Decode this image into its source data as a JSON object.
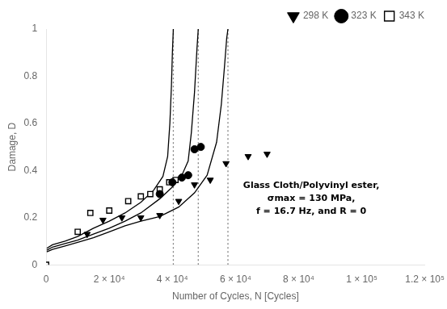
{
  "chart_data": {
    "type": "scatter",
    "x_label": "Number of Cycles, N [Cycles]",
    "y_label": "Damage, D",
    "annotations": [
      {
        "text": [
          "Glass Cloth/Polyvinyl ester,",
          "σmax = 130 MPa,",
          "f = 16.7 Hz, and R = 0"
        ]
      }
    ],
    "xlim": [
      0,
      120000
    ],
    "ylim": [
      0,
      1.0
    ],
    "xticks": [
      0,
      {
        "value": 20000,
        "label": "2 × 10⁴"
      },
      {
        "value": 40000,
        "label": "4 × 10⁴"
      },
      {
        "value": 60000,
        "label": "6 × 10⁴"
      },
      {
        "value": 80000,
        "label": "8 × 10⁴"
      },
      {
        "value": 100000,
        "label": "1 × 10⁵"
      },
      {
        "value": 120000,
        "label": "1.2 × 10⁵"
      }
    ],
    "yticks": [
      0,
      0.2,
      0.4,
      0.6,
      0.8,
      1
    ],
    "grid": false,
    "legend": "upper right",
    "series": [
      {
        "type": "line",
        "line_style": "solid",
        "color": "black",
        "x": [
          200,
          2000,
          6000,
          10000,
          15000,
          20000,
          25000,
          30000,
          36000,
          42000,
          47000,
          51000,
          54000,
          55500,
          56500,
          57200,
          57600
        ],
        "values": [
          0.055,
          0.065,
          0.08,
          0.095,
          0.115,
          0.14,
          0.165,
          0.185,
          0.205,
          0.245,
          0.305,
          0.38,
          0.52,
          0.68,
          0.84,
          0.96,
          1.0
        ]
      },
      {
        "type": "line",
        "line_style": "solid",
        "color": "black",
        "x": [
          200,
          2000,
          6000,
          10000,
          15000,
          20000,
          25000,
          30000,
          36000,
          40000,
          43000,
          45000,
          46000,
          47000,
          47800,
          48200
        ],
        "values": [
          0.062,
          0.075,
          0.09,
          0.105,
          0.13,
          0.155,
          0.185,
          0.22,
          0.28,
          0.33,
          0.38,
          0.44,
          0.56,
          0.73,
          0.92,
          1.0
        ]
      },
      {
        "type": "line",
        "line_style": "solid",
        "color": "black",
        "x": [
          200,
          2000,
          6000,
          10000,
          15000,
          20000,
          25000,
          30000,
          34000,
          37000,
          38500,
          39200,
          39700,
          40000,
          40300
        ],
        "values": [
          0.07,
          0.085,
          0.1,
          0.12,
          0.155,
          0.185,
          0.22,
          0.265,
          0.315,
          0.375,
          0.46,
          0.6,
          0.76,
          0.9,
          1.0
        ]
      },
      {
        "type": "line",
        "line_style": "dotted",
        "color": "gray",
        "x": [
          40300,
          40300
        ],
        "values": [
          0.0,
          1.0
        ]
      },
      {
        "type": "line",
        "line_style": "dotted",
        "color": "gray",
        "x": [
          48200,
          48200
        ],
        "values": [
          0.0,
          1.0
        ]
      },
      {
        "type": "line",
        "line_style": "dotted",
        "color": "gray",
        "x": [
          57600,
          57600
        ],
        "values": [
          0.0,
          1.0
        ]
      },
      {
        "name": "298 K",
        "type": "scatter",
        "marker": "triangle-down",
        "color": "black",
        "x": [
          13000,
          18000,
          24000,
          30000,
          36000,
          42000,
          47000,
          52000,
          57000,
          64000,
          70000
        ],
        "values": [
          0.13,
          0.19,
          0.2,
          0.2,
          0.21,
          0.27,
          0.34,
          0.36,
          0.43,
          0.46,
          0.47
        ]
      },
      {
        "name": "323 K",
        "type": "scatter",
        "marker": "circle",
        "color": "black",
        "x": [
          36000,
          40000,
          43000,
          45000,
          47000,
          49000
        ],
        "values": [
          0.3,
          0.35,
          0.37,
          0.38,
          0.49,
          0.5
        ]
      },
      {
        "name": "343 K",
        "type": "scatter",
        "marker": "open-square",
        "color": "black",
        "x": [
          0,
          10000,
          14000,
          20000,
          26000,
          30000,
          33000,
          36000,
          39000,
          41000
        ],
        "values": [
          0.0,
          0.14,
          0.22,
          0.23,
          0.27,
          0.29,
          0.3,
          0.32,
          0.35,
          0.36
        ]
      }
    ]
  }
}
